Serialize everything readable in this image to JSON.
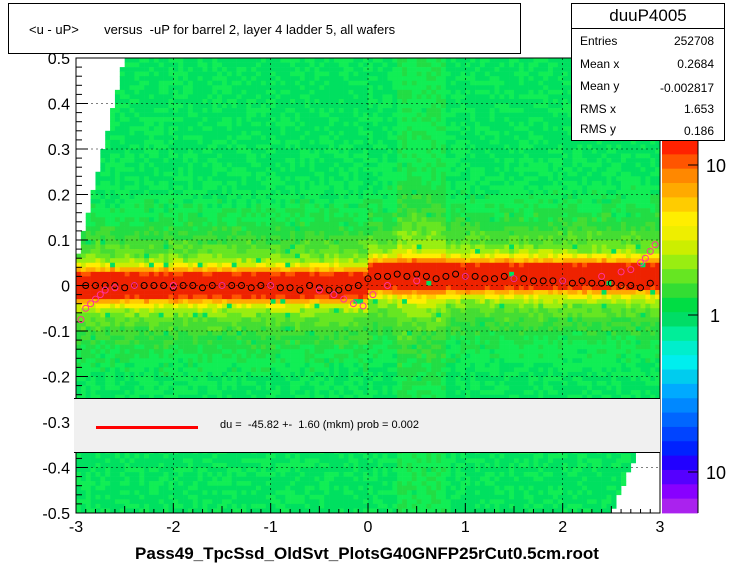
{
  "title": "<u - uP>       versus  -uP for barrel 2, layer 4 ladder 5, all wafers",
  "stats": {
    "name": "duuP4005",
    "rows": [
      {
        "label": "Entries",
        "value": "252708"
      },
      {
        "label": "Mean x",
        "value": "0.2684"
      },
      {
        "label": "Mean y",
        "value": "-0.002817"
      },
      {
        "label": "RMS x",
        "value": "1.653"
      },
      {
        "label": "RMS y",
        "value": "0.186"
      }
    ]
  },
  "fit_text": "du =  -45.82 +-  1.60 (mkm) prob = 0.002",
  "colors": {
    "fit": "#ff0000",
    "profile_black": "#000000",
    "profile_pink": "#ff3399"
  },
  "chart_data": {
    "type": "heatmap",
    "title": "<u - uP>       versus  -uP for barrel 2, layer 4 ladder 5, all wafers",
    "xlabel": "Pass49_TpcSsd_OldSvt_PlotsG40GNFP25rCut0.5cm.root",
    "ylabel": "",
    "xlim": [
      -3,
      3
    ],
    "ylim": [
      -0.5,
      0.5
    ],
    "x_ticks": [
      "-3",
      "-2",
      "-1",
      "0",
      "1",
      "2",
      "3"
    ],
    "y_ticks": [
      "-0.5",
      "-0.4",
      "-0.3",
      "-0.2",
      "-0.1",
      "0",
      "0.1",
      "0.2",
      "0.3",
      "0.4",
      "0.5"
    ],
    "colorbar": {
      "scale": "log",
      "tick_labels": [
        "10",
        "1",
        "10"
      ]
    },
    "grid": true,
    "series": [
      {
        "marker": "circle-black",
        "x": [
          -2.9,
          -2.8,
          -2.7,
          -2.6,
          -2.5,
          -2.4,
          -2.3,
          -2.2,
          -2.1,
          -2.0,
          -1.9,
          -1.8,
          -1.7,
          -1.6,
          -1.5,
          -1.4,
          -1.3,
          -1.2,
          -1.1,
          -1.0,
          -0.9,
          -0.8,
          -0.7,
          -0.6,
          -0.5,
          -0.4,
          -0.3,
          -0.2,
          -0.1,
          0.0,
          0.1,
          0.2,
          0.3,
          0.4,
          0.5,
          0.6,
          0.7,
          0.8,
          0.9,
          1.0,
          1.1,
          1.2,
          1.3,
          1.4,
          1.5,
          1.6,
          1.7,
          1.8,
          1.9,
          2.0,
          2.1,
          2.2,
          2.3,
          2.4,
          2.5,
          2.6,
          2.7,
          2.8,
          2.9
        ],
        "y": [
          0.0,
          0.0,
          0.0,
          0.0,
          -0.005,
          0.0,
          0.0,
          0.0,
          0.0,
          -0.005,
          0.0,
          0.0,
          -0.005,
          0.0,
          0.0,
          0.0,
          0.0,
          -0.005,
          0.0,
          0.0,
          -0.005,
          -0.005,
          -0.01,
          0.0,
          -0.005,
          -0.01,
          -0.01,
          -0.005,
          0.0,
          0.015,
          0.02,
          0.02,
          0.025,
          0.02,
          0.025,
          0.02,
          0.015,
          0.02,
          0.025,
          0.02,
          0.02,
          0.015,
          0.015,
          0.02,
          0.015,
          0.015,
          0.01,
          0.01,
          0.01,
          0.01,
          0.005,
          0.01,
          0.005,
          0.005,
          0.005,
          0.0,
          0.0,
          -0.005,
          0.005
        ]
      },
      {
        "marker": "circle-pink",
        "x": [
          -2.95,
          -2.9,
          -2.85,
          -2.8,
          -2.75,
          -2.7,
          -2.6,
          -2.4,
          -2.0,
          -1.5,
          -1.0,
          -0.5,
          -0.35,
          -0.25,
          -0.15,
          -0.05,
          0.05,
          0.2,
          0.5,
          1.0,
          1.5,
          2.0,
          2.4,
          2.6,
          2.7,
          2.8,
          2.85,
          2.9,
          2.95
        ],
        "y": [
          -0.075,
          -0.05,
          -0.04,
          -0.03,
          -0.02,
          -0.01,
          -0.005,
          0.0,
          0.0,
          0.0,
          0.0,
          -0.01,
          -0.02,
          -0.03,
          -0.04,
          -0.045,
          -0.02,
          0.0,
          0.01,
          0.02,
          0.015,
          0.01,
          0.02,
          0.03,
          0.035,
          0.05,
          0.06,
          0.075,
          0.09
        ]
      }
    ]
  }
}
